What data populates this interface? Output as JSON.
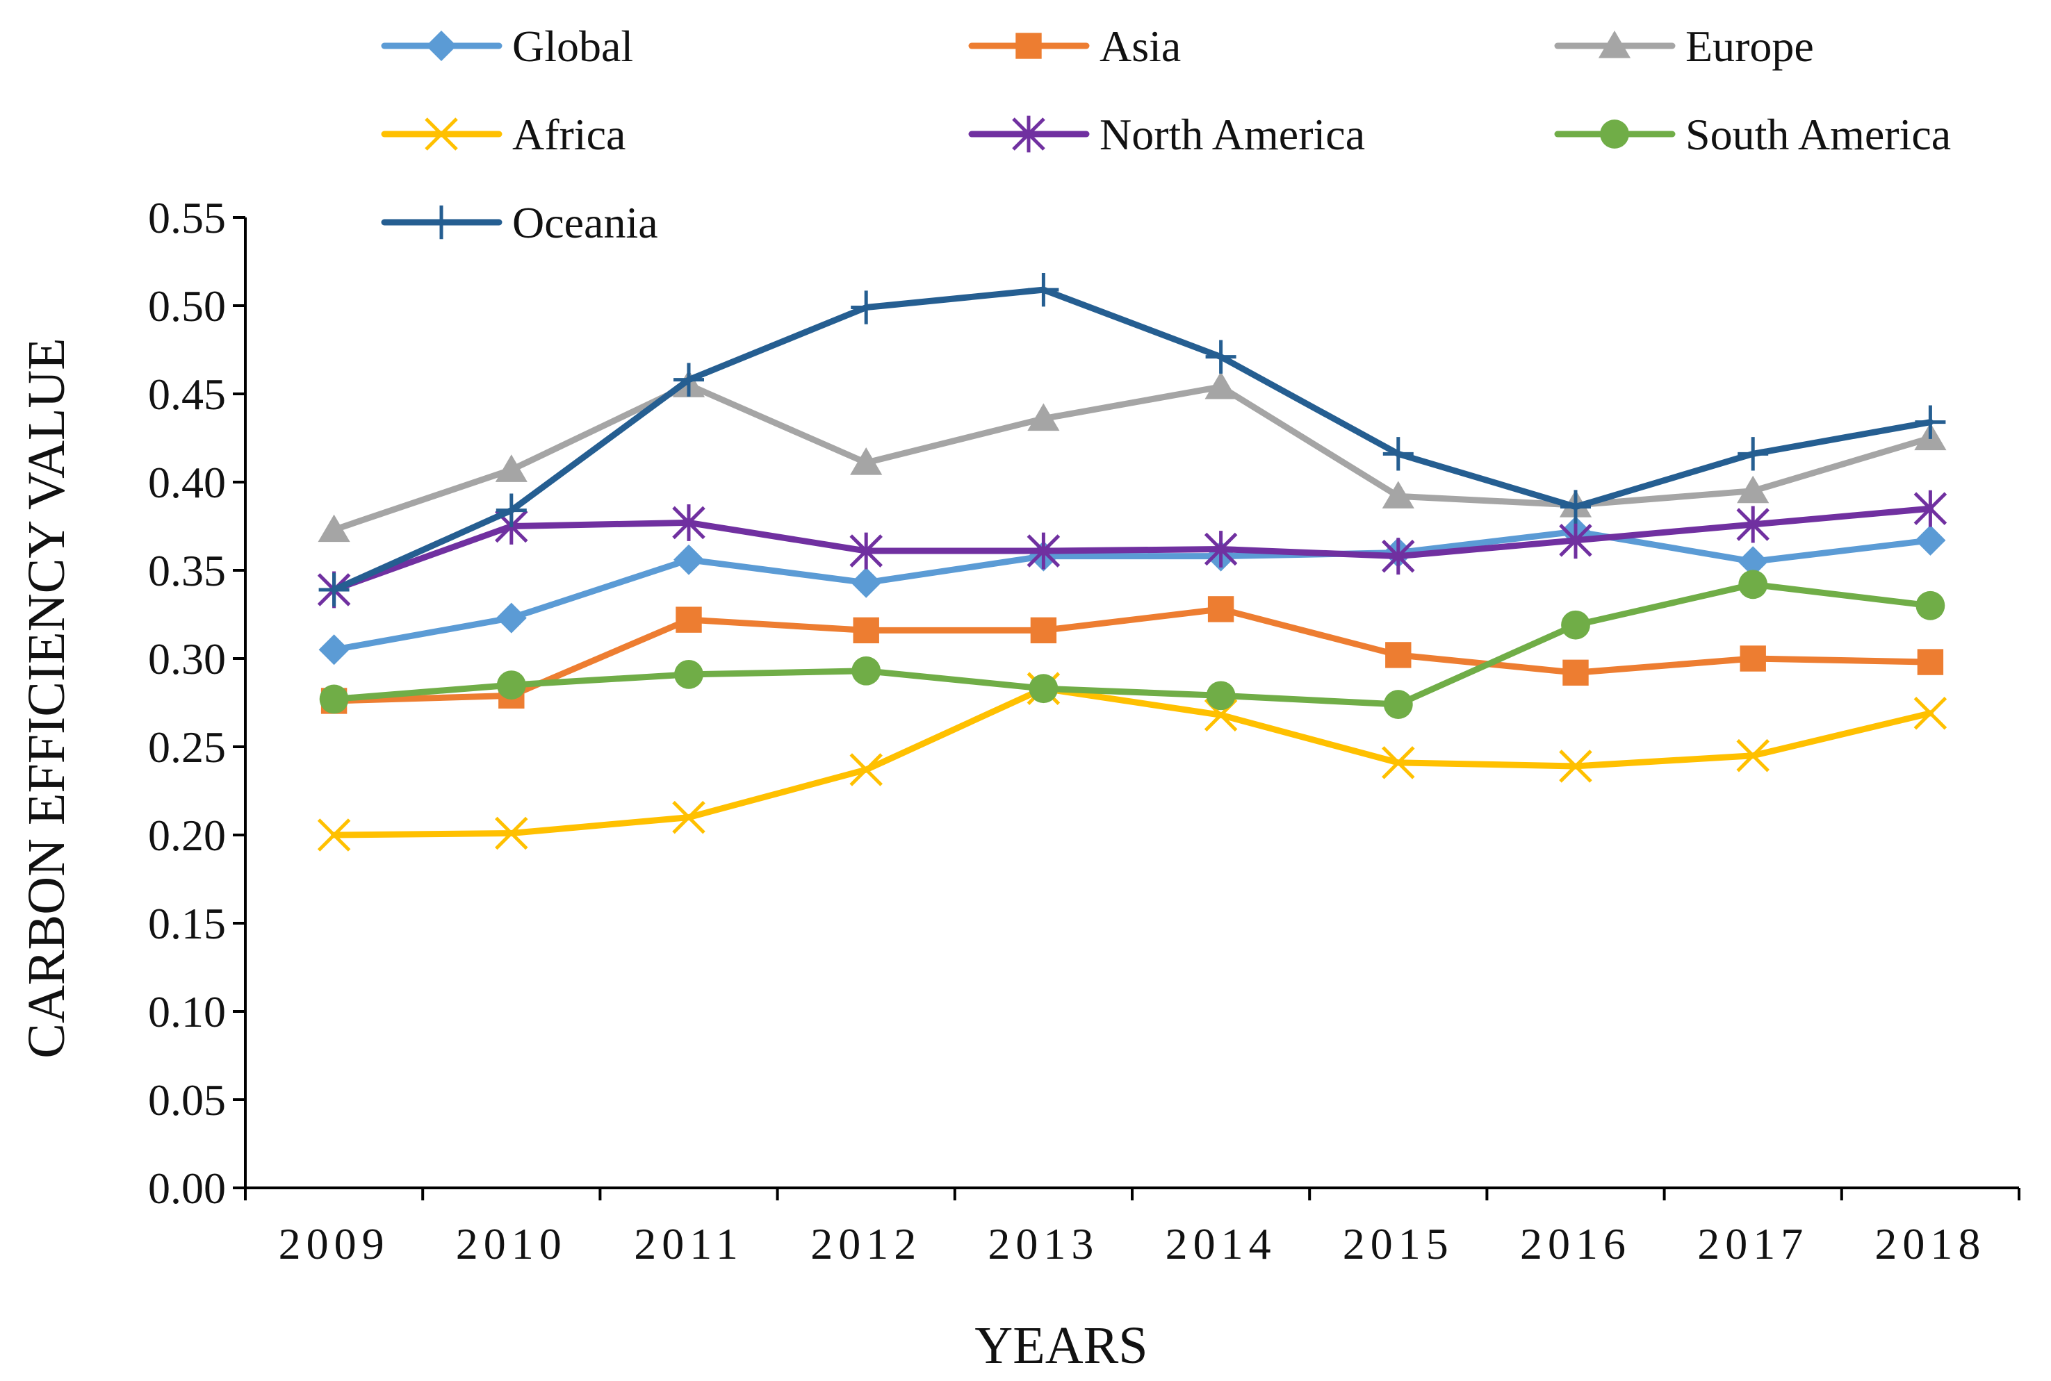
{
  "chart_data": {
    "type": "line",
    "title": "",
    "xlabel": "YEARS",
    "ylabel": "CARBON EFFICIENCY VALUE",
    "categories": [
      "2009",
      "2010",
      "2011",
      "2012",
      "2013",
      "2014",
      "2015",
      "2016",
      "2017",
      "2018"
    ],
    "ylim": [
      0,
      0.55
    ],
    "yticks": [
      "0.00",
      "0.05",
      "0.10",
      "0.15",
      "0.20",
      "0.25",
      "0.30",
      "0.35",
      "0.40",
      "0.45",
      "0.50",
      "0.55"
    ],
    "grid": false,
    "legend_position": "top",
    "series": [
      {
        "name": "Global",
        "color": "#5B9BD5",
        "marker": "diamond",
        "values": [
          0.305,
          0.323,
          0.356,
          0.343,
          0.358,
          0.358,
          0.36,
          0.372,
          0.355,
          0.367
        ]
      },
      {
        "name": "Asia",
        "color": "#ED7D31",
        "marker": "square",
        "values": [
          0.276,
          0.279,
          0.322,
          0.316,
          0.316,
          0.328,
          0.302,
          0.292,
          0.3,
          0.298
        ]
      },
      {
        "name": "Europe",
        "color": "#A5A5A5",
        "marker": "triangle",
        "values": [
          0.373,
          0.407,
          0.455,
          0.411,
          0.436,
          0.454,
          0.392,
          0.387,
          0.395,
          0.425
        ]
      },
      {
        "name": "Africa",
        "color": "#FFC000",
        "marker": "x",
        "values": [
          0.2,
          0.201,
          0.21,
          0.237,
          0.283,
          0.268,
          0.241,
          0.239,
          0.245,
          0.269
        ]
      },
      {
        "name": "North America",
        "color": "#7030A0",
        "marker": "star",
        "values": [
          0.339,
          0.375,
          0.377,
          0.361,
          0.361,
          0.362,
          0.358,
          0.367,
          0.376,
          0.385
        ]
      },
      {
        "name": "South America",
        "color": "#70AD47",
        "marker": "circle",
        "values": [
          0.277,
          0.285,
          0.291,
          0.293,
          0.283,
          0.279,
          0.274,
          0.319,
          0.342,
          0.33
        ]
      },
      {
        "name": "Oceania",
        "color": "#255E91",
        "marker": "plus",
        "values": [
          0.339,
          0.384,
          0.458,
          0.499,
          0.509,
          0.471,
          0.416,
          0.386,
          0.416,
          0.434
        ]
      }
    ]
  }
}
